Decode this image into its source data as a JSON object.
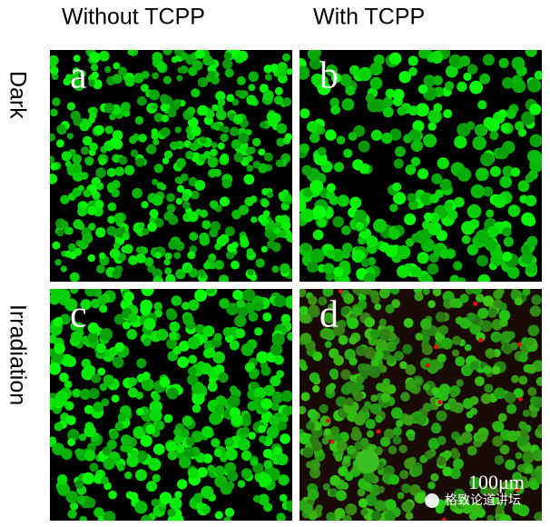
{
  "header": {
    "columns": [
      "Without TCPP",
      "With TCPP"
    ]
  },
  "rows": [
    "Dark",
    "Irradiation"
  ],
  "panels": [
    {
      "label": "a"
    },
    {
      "label": "b"
    },
    {
      "label": "c"
    },
    {
      "label": "d"
    }
  ],
  "scale_bar": "100μm",
  "watermark": "格致论道讲坛"
}
